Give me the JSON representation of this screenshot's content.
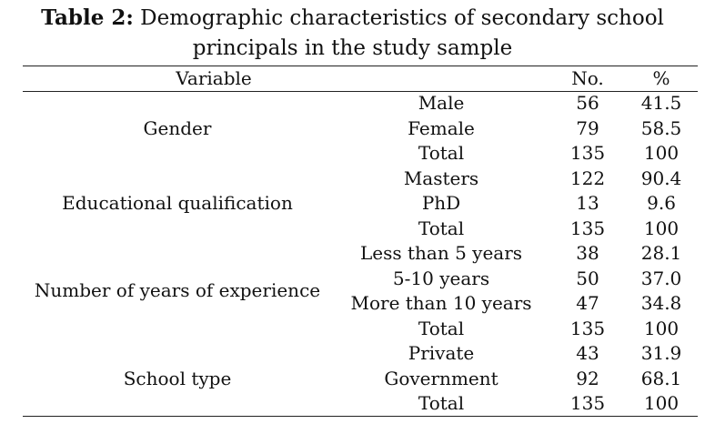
{
  "caption": {
    "label": "Table 2:",
    "line1_rest": "Demographic characteristics of secondary school",
    "line2": "principals in the study sample"
  },
  "table": {
    "headers": {
      "variable": "Variable",
      "no": "No.",
      "pct": "%"
    },
    "groups": [
      {
        "name": "Gender",
        "rows": [
          {
            "category": "Male",
            "no": "56",
            "pct": "41.5"
          },
          {
            "category": "Female",
            "no": "79",
            "pct": "58.5"
          },
          {
            "category": "Total",
            "no": "135",
            "pct": "100"
          }
        ]
      },
      {
        "name": "Educational qualification",
        "rows": [
          {
            "category": "Masters",
            "no": "122",
            "pct": "90.4"
          },
          {
            "category": "PhD",
            "no": "13",
            "pct": "9.6"
          },
          {
            "category": "Total",
            "no": "135",
            "pct": "100"
          }
        ]
      },
      {
        "name": "Number of years of experience",
        "rows": [
          {
            "category": "Less than 5 years",
            "no": "38",
            "pct": "28.1"
          },
          {
            "category": "5-10 years",
            "no": "50",
            "pct": "37.0"
          },
          {
            "category": "More than 10 years",
            "no": "47",
            "pct": "34.8"
          },
          {
            "category": "Total",
            "no": "135",
            "pct": "100"
          }
        ]
      },
      {
        "name": "School type",
        "rows": [
          {
            "category": "Private",
            "no": "43",
            "pct": "31.9"
          },
          {
            "category": "Government",
            "no": "92",
            "pct": "68.1"
          },
          {
            "category": "Total",
            "no": "135",
            "pct": "100"
          }
        ]
      }
    ]
  }
}
